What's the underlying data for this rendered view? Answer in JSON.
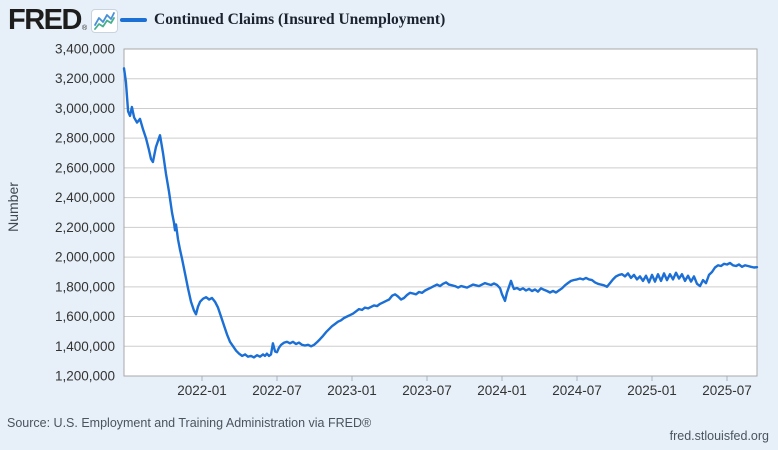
{
  "brand": {
    "logo_text": "FRED",
    "registered_mark": "®",
    "icon": "line-chart-icon"
  },
  "legend": {
    "label": "Continued Claims (Insured Unemployment)"
  },
  "footer": {
    "source": "Source: U.S. Employment and Training Administration via FRED®",
    "site": "fred.stlouisfed.org"
  },
  "colors": {
    "line": "#1b6fd5",
    "grid": "#cdcdcd",
    "border": "#a8a8a8",
    "tick_mark": "#a5b4c5",
    "background": "#e7f0f8",
    "plot_background": "#ffffff",
    "tick_text": "#333333",
    "footer_text": "#4a545f",
    "logo_icon_blue": "#4a90d9",
    "logo_icon_green": "#45b08c"
  },
  "chart_data": {
    "type": "line",
    "title": "Continued Claims (Insured Unemployment)",
    "xlabel": "",
    "ylabel": "Number",
    "grid": true,
    "legend_position": "top",
    "xlim": [
      2021.48,
      2025.7
    ],
    "ylim": [
      1200000,
      3400000
    ],
    "x_ticks": [
      {
        "t": 2022.0,
        "label": "2022-01"
      },
      {
        "t": 2022.5,
        "label": "2022-07"
      },
      {
        "t": 2023.0,
        "label": "2023-01"
      },
      {
        "t": 2023.5,
        "label": "2023-07"
      },
      {
        "t": 2024.0,
        "label": "2024-01"
      },
      {
        "t": 2024.5,
        "label": "2024-07"
      },
      {
        "t": 2025.0,
        "label": "2025-01"
      },
      {
        "t": 2025.5,
        "label": "2025-07"
      }
    ],
    "y_ticks": [
      {
        "v": 1200000,
        "label": "1,200,000"
      },
      {
        "v": 1400000,
        "label": "1,400,000"
      },
      {
        "v": 1600000,
        "label": "1,600,000"
      },
      {
        "v": 1800000,
        "label": "1,800,000"
      },
      {
        "v": 2000000,
        "label": "2,000,000"
      },
      {
        "v": 2200000,
        "label": "2,200,000"
      },
      {
        "v": 2400000,
        "label": "2,400,000"
      },
      {
        "v": 2600000,
        "label": "2,600,000"
      },
      {
        "v": 2800000,
        "label": "2,800,000"
      },
      {
        "v": 3000000,
        "label": "3,000,000"
      },
      {
        "v": 3200000,
        "label": "3,200,000"
      },
      {
        "v": 3400000,
        "label": "3,400,000"
      }
    ],
    "series": [
      {
        "name": "Continued Claims (Insured Unemployment)",
        "points": [
          [
            2021.48,
            3270000
          ],
          [
            2021.493,
            3180000
          ],
          [
            2021.507,
            2980000
          ],
          [
            2021.52,
            2950000
          ],
          [
            2021.533,
            3010000
          ],
          [
            2021.547,
            2940000
          ],
          [
            2021.567,
            2905000
          ],
          [
            2021.587,
            2930000
          ],
          [
            2021.607,
            2860000
          ],
          [
            2021.627,
            2800000
          ],
          [
            2021.647,
            2720000
          ],
          [
            2021.66,
            2660000
          ],
          [
            2021.673,
            2640000
          ],
          [
            2021.693,
            2740000
          ],
          [
            2021.72,
            2820000
          ],
          [
            2021.74,
            2700000
          ],
          [
            2021.76,
            2560000
          ],
          [
            2021.78,
            2440000
          ],
          [
            2021.8,
            2300000
          ],
          [
            2021.813,
            2230000
          ],
          [
            2021.82,
            2180000
          ],
          [
            2021.827,
            2220000
          ],
          [
            2021.84,
            2120000
          ],
          [
            2021.853,
            2050000
          ],
          [
            2021.867,
            1990000
          ],
          [
            2021.887,
            1890000
          ],
          [
            2021.907,
            1790000
          ],
          [
            2021.927,
            1700000
          ],
          [
            2021.947,
            1640000
          ],
          [
            2021.96,
            1615000
          ],
          [
            2021.973,
            1665000
          ],
          [
            2021.987,
            1700000
          ],
          [
            2022.007,
            1720000
          ],
          [
            2022.027,
            1730000
          ],
          [
            2022.047,
            1715000
          ],
          [
            2022.067,
            1725000
          ],
          [
            2022.087,
            1700000
          ],
          [
            2022.107,
            1660000
          ],
          [
            2022.127,
            1600000
          ],
          [
            2022.147,
            1540000
          ],
          [
            2022.167,
            1480000
          ],
          [
            2022.187,
            1430000
          ],
          [
            2022.207,
            1400000
          ],
          [
            2022.227,
            1370000
          ],
          [
            2022.247,
            1350000
          ],
          [
            2022.267,
            1335000
          ],
          [
            2022.287,
            1345000
          ],
          [
            2022.307,
            1330000
          ],
          [
            2022.327,
            1335000
          ],
          [
            2022.347,
            1325000
          ],
          [
            2022.367,
            1340000
          ],
          [
            2022.387,
            1330000
          ],
          [
            2022.407,
            1345000
          ],
          [
            2022.42,
            1335000
          ],
          [
            2022.433,
            1350000
          ],
          [
            2022.447,
            1335000
          ],
          [
            2022.46,
            1345000
          ],
          [
            2022.473,
            1420000
          ],
          [
            2022.487,
            1365000
          ],
          [
            2022.5,
            1360000
          ],
          [
            2022.513,
            1390000
          ],
          [
            2022.527,
            1410000
          ],
          [
            2022.547,
            1425000
          ],
          [
            2022.567,
            1430000
          ],
          [
            2022.587,
            1420000
          ],
          [
            2022.607,
            1430000
          ],
          [
            2022.627,
            1415000
          ],
          [
            2022.647,
            1425000
          ],
          [
            2022.667,
            1410000
          ],
          [
            2022.687,
            1405000
          ],
          [
            2022.707,
            1410000
          ],
          [
            2022.727,
            1400000
          ],
          [
            2022.747,
            1410000
          ],
          [
            2022.767,
            1428000
          ],
          [
            2022.787,
            1448000
          ],
          [
            2022.807,
            1470000
          ],
          [
            2022.827,
            1495000
          ],
          [
            2022.847,
            1515000
          ],
          [
            2022.867,
            1535000
          ],
          [
            2022.887,
            1550000
          ],
          [
            2022.907,
            1565000
          ],
          [
            2022.927,
            1575000
          ],
          [
            2022.947,
            1590000
          ],
          [
            2022.967,
            1600000
          ],
          [
            2022.987,
            1610000
          ],
          [
            2023.007,
            1620000
          ],
          [
            2023.027,
            1635000
          ],
          [
            2023.047,
            1650000
          ],
          [
            2023.067,
            1645000
          ],
          [
            2023.087,
            1660000
          ],
          [
            2023.107,
            1655000
          ],
          [
            2023.127,
            1665000
          ],
          [
            2023.147,
            1675000
          ],
          [
            2023.167,
            1670000
          ],
          [
            2023.187,
            1685000
          ],
          [
            2023.207,
            1695000
          ],
          [
            2023.227,
            1705000
          ],
          [
            2023.247,
            1715000
          ],
          [
            2023.267,
            1740000
          ],
          [
            2023.287,
            1750000
          ],
          [
            2023.307,
            1735000
          ],
          [
            2023.327,
            1715000
          ],
          [
            2023.347,
            1725000
          ],
          [
            2023.367,
            1745000
          ],
          [
            2023.387,
            1760000
          ],
          [
            2023.407,
            1755000
          ],
          [
            2023.427,
            1750000
          ],
          [
            2023.447,
            1765000
          ],
          [
            2023.467,
            1760000
          ],
          [
            2023.487,
            1775000
          ],
          [
            2023.507,
            1785000
          ],
          [
            2023.527,
            1795000
          ],
          [
            2023.547,
            1805000
          ],
          [
            2023.567,
            1815000
          ],
          [
            2023.587,
            1805000
          ],
          [
            2023.607,
            1820000
          ],
          [
            2023.627,
            1830000
          ],
          [
            2023.647,
            1815000
          ],
          [
            2023.667,
            1810000
          ],
          [
            2023.687,
            1805000
          ],
          [
            2023.707,
            1795000
          ],
          [
            2023.727,
            1805000
          ],
          [
            2023.747,
            1800000
          ],
          [
            2023.767,
            1795000
          ],
          [
            2023.787,
            1805000
          ],
          [
            2023.807,
            1815000
          ],
          [
            2023.827,
            1810000
          ],
          [
            2023.847,
            1805000
          ],
          [
            2023.867,
            1815000
          ],
          [
            2023.887,
            1825000
          ],
          [
            2023.907,
            1818000
          ],
          [
            2023.927,
            1812000
          ],
          [
            2023.947,
            1822000
          ],
          [
            2023.967,
            1812000
          ],
          [
            2023.987,
            1790000
          ],
          [
            2024.0,
            1750000
          ],
          [
            2024.02,
            1705000
          ],
          [
            2024.033,
            1760000
          ],
          [
            2024.047,
            1800000
          ],
          [
            2024.06,
            1840000
          ],
          [
            2024.073,
            1800000
          ],
          [
            2024.08,
            1785000
          ],
          [
            2024.1,
            1792000
          ],
          [
            2024.12,
            1780000
          ],
          [
            2024.14,
            1790000
          ],
          [
            2024.16,
            1775000
          ],
          [
            2024.18,
            1786000
          ],
          [
            2024.2,
            1772000
          ],
          [
            2024.22,
            1782000
          ],
          [
            2024.24,
            1768000
          ],
          [
            2024.26,
            1790000
          ],
          [
            2024.28,
            1780000
          ],
          [
            2024.3,
            1772000
          ],
          [
            2024.32,
            1762000
          ],
          [
            2024.34,
            1772000
          ],
          [
            2024.36,
            1762000
          ],
          [
            2024.38,
            1776000
          ],
          [
            2024.4,
            1790000
          ],
          [
            2024.42,
            1810000
          ],
          [
            2024.44,
            1826000
          ],
          [
            2024.46,
            1840000
          ],
          [
            2024.48,
            1846000
          ],
          [
            2024.5,
            1850000
          ],
          [
            2024.52,
            1856000
          ],
          [
            2024.54,
            1850000
          ],
          [
            2024.56,
            1860000
          ],
          [
            2024.58,
            1850000
          ],
          [
            2024.6,
            1845000
          ],
          [
            2024.62,
            1830000
          ],
          [
            2024.64,
            1820000
          ],
          [
            2024.66,
            1815000
          ],
          [
            2024.68,
            1810000
          ],
          [
            2024.7,
            1800000
          ],
          [
            2024.72,
            1825000
          ],
          [
            2024.74,
            1850000
          ],
          [
            2024.76,
            1870000
          ],
          [
            2024.78,
            1880000
          ],
          [
            2024.8,
            1885000
          ],
          [
            2024.82,
            1870000
          ],
          [
            2024.84,
            1890000
          ],
          [
            2024.86,
            1860000
          ],
          [
            2024.88,
            1880000
          ],
          [
            2024.9,
            1850000
          ],
          [
            2024.92,
            1870000
          ],
          [
            2024.94,
            1840000
          ],
          [
            2024.96,
            1875000
          ],
          [
            2024.98,
            1830000
          ],
          [
            2025.0,
            1880000
          ],
          [
            2025.02,
            1835000
          ],
          [
            2025.04,
            1885000
          ],
          [
            2025.06,
            1840000
          ],
          [
            2025.08,
            1890000
          ],
          [
            2025.1,
            1845000
          ],
          [
            2025.12,
            1885000
          ],
          [
            2025.14,
            1850000
          ],
          [
            2025.16,
            1895000
          ],
          [
            2025.18,
            1855000
          ],
          [
            2025.2,
            1885000
          ],
          [
            2025.22,
            1840000
          ],
          [
            2025.24,
            1875000
          ],
          [
            2025.26,
            1835000
          ],
          [
            2025.28,
            1870000
          ],
          [
            2025.3,
            1820000
          ],
          [
            2025.32,
            1805000
          ],
          [
            2025.34,
            1845000
          ],
          [
            2025.36,
            1825000
          ],
          [
            2025.38,
            1880000
          ],
          [
            2025.4,
            1900000
          ],
          [
            2025.42,
            1930000
          ],
          [
            2025.44,
            1945000
          ],
          [
            2025.46,
            1940000
          ],
          [
            2025.48,
            1955000
          ],
          [
            2025.5,
            1950000
          ],
          [
            2025.52,
            1960000
          ],
          [
            2025.54,
            1945000
          ],
          [
            2025.56,
            1940000
          ],
          [
            2025.58,
            1950000
          ],
          [
            2025.6,
            1935000
          ],
          [
            2025.62,
            1945000
          ],
          [
            2025.64,
            1940000
          ],
          [
            2025.66,
            1935000
          ],
          [
            2025.68,
            1930000
          ],
          [
            2025.7,
            1932000
          ]
        ]
      }
    ]
  }
}
